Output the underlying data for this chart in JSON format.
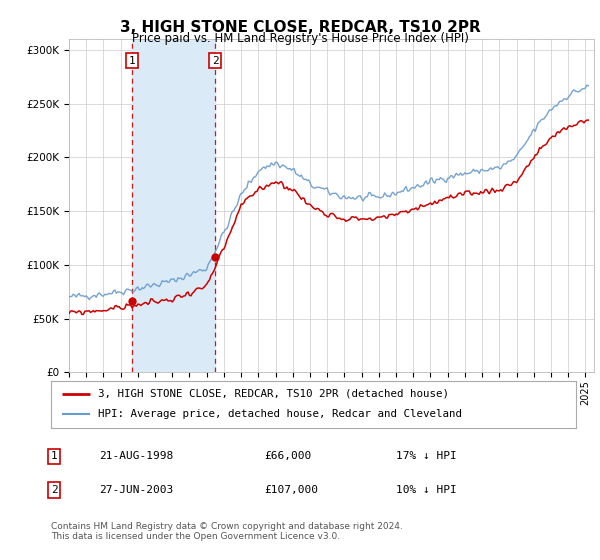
{
  "title": "3, HIGH STONE CLOSE, REDCAR, TS10 2PR",
  "subtitle": "Price paid vs. HM Land Registry's House Price Index (HPI)",
  "xlim_start": 1995.0,
  "xlim_end": 2025.5,
  "ylim_min": 0,
  "ylim_max": 310000,
  "yticks": [
    0,
    50000,
    100000,
    150000,
    200000,
    250000,
    300000
  ],
  "ytick_labels": [
    "£0",
    "£50K",
    "£100K",
    "£150K",
    "£200K",
    "£250K",
    "£300K"
  ],
  "purchases": [
    {
      "num": 1,
      "date": "21-AUG-1998",
      "price": 66000,
      "year": 1998.64,
      "shade_start": 1998.64,
      "shade_end": 2003.49
    },
    {
      "num": 2,
      "date": "27-JUN-2003",
      "price": 107000,
      "year": 2003.49,
      "shade_start": 1998.64,
      "shade_end": 2003.49
    }
  ],
  "legend_entries": [
    {
      "label": "3, HIGH STONE CLOSE, REDCAR, TS10 2PR (detached house)",
      "color": "#cc0000",
      "lw": 2
    },
    {
      "label": "HPI: Average price, detached house, Redcar and Cleveland",
      "color": "#6699cc",
      "lw": 1.5
    }
  ],
  "table_rows": [
    {
      "num": "1",
      "date": "21-AUG-1998",
      "price": "£66,000",
      "pct": "17% ↓ HPI"
    },
    {
      "num": "2",
      "date": "27-JUN-2003",
      "price": "£107,000",
      "pct": "10% ↓ HPI"
    }
  ],
  "footnote": "Contains HM Land Registry data © Crown copyright and database right 2024.\nThis data is licensed under the Open Government Licence v3.0.",
  "bg_color": "#ffffff",
  "grid_color": "#cccccc",
  "shade_color": "#daeaf7",
  "dashed_color": "#cc0000",
  "hpi_color": "#6699cc",
  "price_color": "#cc0000",
  "hpi_anchors_x": [
    1995,
    1997,
    1999,
    2001,
    2003,
    2004,
    2005,
    2006,
    2007,
    2008,
    2009,
    2010,
    2011,
    2012,
    2013,
    2014,
    2015,
    2016,
    2017,
    2018,
    2019,
    2020,
    2021,
    2022,
    2023,
    2024,
    2025
  ],
  "hpi_anchors_y": [
    70000,
    73000,
    78000,
    85000,
    97000,
    130000,
    165000,
    188000,
    195000,
    188000,
    175000,
    168000,
    163000,
    162000,
    163000,
    167000,
    172000,
    177000,
    182000,
    185000,
    188000,
    190000,
    200000,
    225000,
    245000,
    258000,
    265000
  ],
  "price_anchors_x": [
    1995,
    1997,
    1999,
    2001,
    2003,
    2004,
    2005,
    2006,
    2007,
    2008,
    2009,
    2010,
    2011,
    2012,
    2013,
    2014,
    2015,
    2016,
    2017,
    2018,
    2019,
    2020,
    2021,
    2022,
    2023,
    2024,
    2025
  ],
  "price_anchors_y": [
    55000,
    58000,
    63000,
    68000,
    80000,
    115000,
    155000,
    170000,
    178000,
    170000,
    155000,
    148000,
    143000,
    143000,
    143000,
    147000,
    152000,
    157000,
    162000,
    165000,
    168000,
    170000,
    178000,
    200000,
    218000,
    228000,
    235000
  ]
}
